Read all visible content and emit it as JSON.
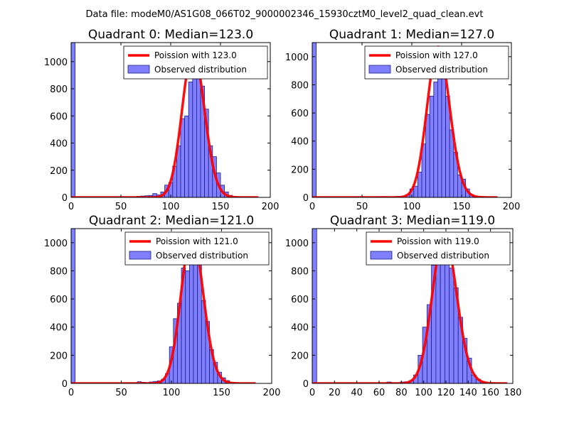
{
  "figure_title": "Data file: modeM0/AS1G08_066T02_9000002346_15930cztM0_level2_quad_clean.evt",
  "colors": {
    "bar_fill": "#8080ff",
    "bar_edge": "#1c1c8c",
    "curve": "#ff0000",
    "axes": "#000000",
    "background": "#ffffff"
  },
  "chart_data": [
    {
      "type": "bar",
      "title": "Quadrant 0: Median=123.0",
      "xlim": [
        0,
        200
      ],
      "ylim": [
        0,
        1140
      ],
      "xticks": [
        0,
        50,
        100,
        150,
        200
      ],
      "xtick_labels": [
        "0",
        "50",
        "100",
        "150",
        "200"
      ],
      "yticks": [
        0,
        200,
        400,
        600,
        800,
        1000
      ],
      "ytick_labels": [
        "0",
        "200",
        "400",
        "600",
        "800",
        "1000"
      ],
      "grid": false,
      "legend_position": "top-right",
      "legend": [
        "Poission with 123.0",
        "Observed distribution"
      ],
      "bin_width": 4,
      "bins": [
        {
          "x": 0,
          "y": 1140
        },
        {
          "x": 66,
          "y": 8
        },
        {
          "x": 70,
          "y": 10
        },
        {
          "x": 74,
          "y": 12
        },
        {
          "x": 78,
          "y": 14
        },
        {
          "x": 82,
          "y": 28
        },
        {
          "x": 86,
          "y": 18
        },
        {
          "x": 90,
          "y": 40
        },
        {
          "x": 94,
          "y": 90
        },
        {
          "x": 98,
          "y": 110
        },
        {
          "x": 102,
          "y": 230
        },
        {
          "x": 106,
          "y": 380
        },
        {
          "x": 110,
          "y": 580
        },
        {
          "x": 114,
          "y": 600
        },
        {
          "x": 118,
          "y": 850
        },
        {
          "x": 122,
          "y": 960
        },
        {
          "x": 126,
          "y": 1000
        },
        {
          "x": 130,
          "y": 820
        },
        {
          "x": 134,
          "y": 650
        },
        {
          "x": 138,
          "y": 380
        },
        {
          "x": 142,
          "y": 300
        },
        {
          "x": 146,
          "y": 180
        },
        {
          "x": 150,
          "y": 90
        },
        {
          "x": 154,
          "y": 40
        },
        {
          "x": 158,
          "y": 15
        },
        {
          "x": 162,
          "y": 5
        }
      ],
      "series": [
        {
          "name": "Poission with 123.0",
          "style": "line",
          "mean": 123.0,
          "peak": 1080,
          "x_range": [
            0,
            188
          ]
        },
        {
          "name": "Observed distribution",
          "style": "bar"
        }
      ]
    },
    {
      "type": "bar",
      "title": "Quadrant 1: Median=127.0",
      "xlim": [
        0,
        200
      ],
      "ylim": [
        0,
        1100
      ],
      "xticks": [
        0,
        50,
        100,
        150,
        200
      ],
      "xtick_labels": [
        "0",
        "50",
        "100",
        "150",
        "200"
      ],
      "yticks": [
        0,
        200,
        400,
        600,
        800,
        1000
      ],
      "ytick_labels": [
        "0",
        "200",
        "400",
        "600",
        "800",
        "1000"
      ],
      "grid": false,
      "legend_position": "top-right",
      "legend": [
        "Poission with 127.0",
        "Observed distribution"
      ],
      "bin_width": 4,
      "bins": [
        {
          "x": 0,
          "y": 1100
        },
        {
          "x": 70,
          "y": 6
        },
        {
          "x": 74,
          "y": 5
        },
        {
          "x": 82,
          "y": 6
        },
        {
          "x": 86,
          "y": 8
        },
        {
          "x": 90,
          "y": 8
        },
        {
          "x": 94,
          "y": 20
        },
        {
          "x": 98,
          "y": 60
        },
        {
          "x": 102,
          "y": 80
        },
        {
          "x": 106,
          "y": 180
        },
        {
          "x": 110,
          "y": 380
        },
        {
          "x": 114,
          "y": 590
        },
        {
          "x": 118,
          "y": 720
        },
        {
          "x": 122,
          "y": 820
        },
        {
          "x": 126,
          "y": 1020
        },
        {
          "x": 130,
          "y": 850
        },
        {
          "x": 134,
          "y": 720
        },
        {
          "x": 138,
          "y": 480
        },
        {
          "x": 142,
          "y": 320
        },
        {
          "x": 146,
          "y": 160
        },
        {
          "x": 150,
          "y": 130
        },
        {
          "x": 154,
          "y": 60
        },
        {
          "x": 158,
          "y": 20
        },
        {
          "x": 162,
          "y": 8
        },
        {
          "x": 166,
          "y": 3
        }
      ],
      "series": [
        {
          "name": "Poission with 127.0",
          "style": "line",
          "mean": 127.0,
          "peak": 1070,
          "x_range": [
            0,
            186
          ]
        },
        {
          "name": "Observed distribution",
          "style": "bar"
        }
      ]
    },
    {
      "type": "bar",
      "title": "Quadrant 2: Median=121.0",
      "xlim": [
        0,
        200
      ],
      "ylim": [
        0,
        1100
      ],
      "xticks": [
        0,
        50,
        100,
        150,
        200
      ],
      "xtick_labels": [
        "0",
        "50",
        "100",
        "150",
        "200"
      ],
      "yticks": [
        0,
        200,
        400,
        600,
        800,
        1000
      ],
      "ytick_labels": [
        "0",
        "200",
        "400",
        "600",
        "800",
        "1000"
      ],
      "grid": false,
      "legend_position": "top-right",
      "legend": [
        "Poission with 121.0",
        "Observed distribution"
      ],
      "bin_width": 4,
      "bins": [
        {
          "x": 0,
          "y": 1100
        },
        {
          "x": 66,
          "y": 12
        },
        {
          "x": 70,
          "y": 8
        },
        {
          "x": 74,
          "y": 5
        },
        {
          "x": 78,
          "y": 10
        },
        {
          "x": 82,
          "y": 14
        },
        {
          "x": 86,
          "y": 18
        },
        {
          "x": 90,
          "y": 30
        },
        {
          "x": 94,
          "y": 70
        },
        {
          "x": 98,
          "y": 260
        },
        {
          "x": 102,
          "y": 460
        },
        {
          "x": 106,
          "y": 570
        },
        {
          "x": 110,
          "y": 820
        },
        {
          "x": 114,
          "y": 800
        },
        {
          "x": 118,
          "y": 1000
        },
        {
          "x": 122,
          "y": 940
        },
        {
          "x": 126,
          "y": 870
        },
        {
          "x": 130,
          "y": 590
        },
        {
          "x": 134,
          "y": 440
        },
        {
          "x": 138,
          "y": 240
        },
        {
          "x": 142,
          "y": 150
        },
        {
          "x": 146,
          "y": 80
        },
        {
          "x": 150,
          "y": 40
        },
        {
          "x": 154,
          "y": 20
        },
        {
          "x": 158,
          "y": 8
        }
      ],
      "series": [
        {
          "name": "Poission with 121.0",
          "style": "line",
          "mean": 121.0,
          "peak": 1060,
          "x_range": [
            0,
            184
          ]
        },
        {
          "name": "Observed distribution",
          "style": "bar"
        }
      ]
    },
    {
      "type": "bar",
      "title": "Quadrant 3: Median=119.0",
      "xlim": [
        0,
        180
      ],
      "ylim": [
        0,
        1100
      ],
      "xticks": [
        0,
        20,
        40,
        60,
        80,
        100,
        120,
        140,
        160,
        180
      ],
      "xtick_labels": [
        "0",
        "20",
        "40",
        "60",
        "80",
        "100",
        "120",
        "140",
        "160",
        "180"
      ],
      "yticks": [
        0,
        200,
        400,
        600,
        800,
        1000
      ],
      "ytick_labels": [
        "0",
        "200",
        "400",
        "600",
        "800",
        "1000"
      ],
      "grid": false,
      "legend_position": "top-right",
      "legend": [
        "Poission with 119.0",
        "Observed distribution"
      ],
      "bin_width": 4,
      "bins": [
        {
          "x": 0,
          "y": 1100
        },
        {
          "x": 67,
          "y": 10
        },
        {
          "x": 71,
          "y": 5
        },
        {
          "x": 79,
          "y": 10
        },
        {
          "x": 83,
          "y": 12
        },
        {
          "x": 87,
          "y": 20
        },
        {
          "x": 91,
          "y": 60
        },
        {
          "x": 95,
          "y": 200
        },
        {
          "x": 99,
          "y": 400
        },
        {
          "x": 103,
          "y": 560
        },
        {
          "x": 107,
          "y": 840
        },
        {
          "x": 111,
          "y": 1000
        },
        {
          "x": 115,
          "y": 980
        },
        {
          "x": 119,
          "y": 960
        },
        {
          "x": 123,
          "y": 820
        },
        {
          "x": 127,
          "y": 680
        },
        {
          "x": 131,
          "y": 470
        },
        {
          "x": 135,
          "y": 320
        },
        {
          "x": 139,
          "y": 180
        },
        {
          "x": 143,
          "y": 60
        },
        {
          "x": 147,
          "y": 30
        },
        {
          "x": 151,
          "y": 10
        }
      ],
      "series": [
        {
          "name": "Poission with 119.0",
          "style": "line",
          "mean": 119.0,
          "peak": 1050,
          "x_range": [
            0,
            175
          ]
        },
        {
          "name": "Observed distribution",
          "style": "bar"
        }
      ]
    }
  ]
}
